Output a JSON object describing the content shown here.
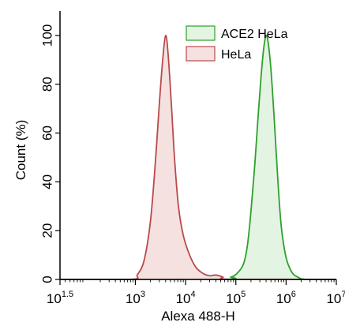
{
  "chart_data": {
    "type": "area",
    "xlabel": "Alexa 488-H",
    "ylabel": "Count (%)",
    "x_scale": "log",
    "xlim": [
      31.6,
      10000000
    ],
    "ylim": [
      0,
      110
    ],
    "x_ticks": [
      {
        "base": "10",
        "exp": "1.5",
        "value": 31.6
      },
      {
        "base": "10",
        "exp": "3",
        "value": 1000
      },
      {
        "base": "10",
        "exp": "4",
        "value": 10000
      },
      {
        "base": "10",
        "exp": "5",
        "value": 100000
      },
      {
        "base": "10",
        "exp": "6",
        "value": 1000000
      },
      {
        "base": "10",
        "exp": "7",
        "value": 10000000
      }
    ],
    "y_ticks": [
      0,
      20,
      40,
      60,
      80,
      100
    ],
    "grid": false,
    "legend_position": "top-right",
    "series": [
      {
        "name": "ACE2 HeLa",
        "color": "#2ea02e",
        "fill": "#e4f4e2",
        "points": [
          [
            31.6,
            0
          ],
          [
            50000,
            0
          ],
          [
            80000,
            1
          ],
          [
            100000,
            2
          ],
          [
            140000,
            6
          ],
          [
            170000,
            14
          ],
          [
            200000,
            28
          ],
          [
            240000,
            48
          ],
          [
            280000,
            68
          ],
          [
            320000,
            84
          ],
          [
            360000,
            95
          ],
          [
            400000,
            100
          ],
          [
            440000,
            97
          ],
          [
            500000,
            86
          ],
          [
            580000,
            66
          ],
          [
            680000,
            42
          ],
          [
            800000,
            22
          ],
          [
            1000000,
            9
          ],
          [
            1300000,
            3
          ],
          [
            1700000,
            1
          ],
          [
            2500000,
            0
          ],
          [
            10000000,
            0
          ]
        ]
      },
      {
        "name": "HeLa",
        "color": "#b84a4a",
        "fill": "#f6e1e1",
        "points": [
          [
            31.6,
            0
          ],
          [
            800,
            0
          ],
          [
            1100,
            2
          ],
          [
            1500,
            8
          ],
          [
            2000,
            24
          ],
          [
            2500,
            48
          ],
          [
            3000,
            72
          ],
          [
            3500,
            90
          ],
          [
            4000,
            100
          ],
          [
            4500,
            92
          ],
          [
            5200,
            72
          ],
          [
            6000,
            50
          ],
          [
            7200,
            30
          ],
          [
            9000,
            18
          ],
          [
            12000,
            10
          ],
          [
            16000,
            5
          ],
          [
            22000,
            2.5
          ],
          [
            30000,
            1.5
          ],
          [
            40000,
            1.8
          ],
          [
            55000,
            1
          ],
          [
            80000,
            0
          ],
          [
            10000000,
            0
          ]
        ]
      }
    ]
  }
}
